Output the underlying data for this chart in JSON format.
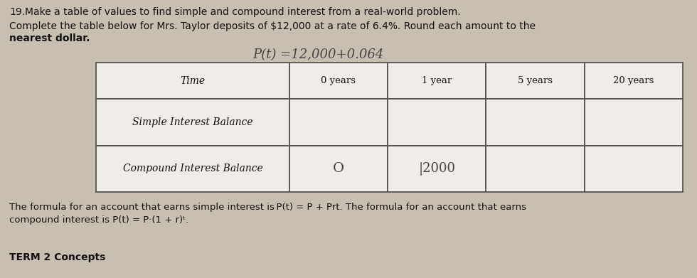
{
  "question_number": "19.",
  "question_text": "Make a table of values to find simple and compound interest from a real-world problem.",
  "paragraph1": "Complete the table below for Mrs. Taylor deposits of $12,000 at a rate of 6.4%. Round each amount to the",
  "paragraph2": "nearest dollar.",
  "handwritten_formula": "P(t) =12,000+0.064",
  "col_headers": [
    "Time",
    "0 years",
    "1 year",
    "5 years",
    "20 years"
  ],
  "row_labels": [
    "Simple Interest Balance",
    "Compound Interest Balance"
  ],
  "cell_data": [
    [
      "",
      "",
      "",
      ""
    ],
    [
      "O",
      "|2000",
      "",
      ""
    ]
  ],
  "formula_text1": "The formula for an account that earns simple interest is P(t) = P + Prt. The formula for an account that earns",
  "formula_text2": "compound interest is P(t) = P·(1 + r)ᵗ.",
  "footer": "TERM 2 Concepts",
  "bg_color": "#c8bfb0",
  "table_bg_white": "#f0ede8",
  "table_border": "#555555",
  "font_color": "#111111",
  "handwritten_color": "#444444"
}
